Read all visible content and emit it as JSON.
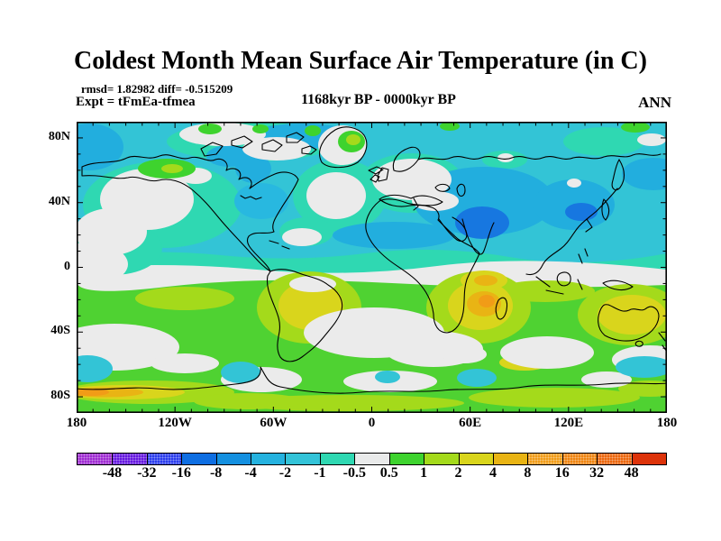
{
  "title": "Coldest Month Mean Surface Air Temperature (in C)",
  "header": {
    "stats_line": "rmsd= 1.82982 diff= -0.515209",
    "expt_line": "Expt = tFmEa-tfmea",
    "period": "1168kyr BP - 0000kyr BP",
    "season": "ANN"
  },
  "axes": {
    "lat_labels": [
      "80N",
      "40N",
      "0",
      "40S",
      "80S"
    ],
    "lon_labels": [
      "180",
      "120W",
      "60W",
      "0",
      "60E",
      "120E",
      "180"
    ]
  },
  "colorbar_labels": [
    "-48",
    "-32",
    "-16",
    "-8",
    "-4",
    "-2",
    "-1",
    "-0.5",
    "0.5",
    "1",
    "2",
    "4",
    "8",
    "16",
    "32",
    "48"
  ],
  "chart_data": {
    "type": "heatmap",
    "subtype": "filled-contour world map (equirectangular projection)",
    "title": "Coldest Month Mean Surface Air Temperature (in C)",
    "stats": {
      "rmsd": 1.82982,
      "diff": -0.515209
    },
    "experiment": "tFmEa-tfmea",
    "comparison": "1168kyr BP - 0000kyr BP",
    "season": "ANN",
    "units": "C",
    "x_axis": {
      "label": "longitude",
      "tick_labels": [
        "180",
        "120W",
        "60W",
        "0",
        "60E",
        "120E",
        "180"
      ],
      "range_deg": [
        -180,
        180
      ],
      "minor_tick_interval_deg": 10,
      "major_tick_interval_deg": 60
    },
    "y_axis": {
      "label": "latitude",
      "tick_labels": [
        "80N",
        "40N",
        "0",
        "40S",
        "80S"
      ],
      "range_deg": [
        -90,
        90
      ],
      "minor_tick_interval_deg": 10,
      "major_tick_interval_deg": 40
    },
    "colorbar": {
      "levels": [
        -48,
        -32,
        -16,
        -8,
        -4,
        -2,
        -1,
        -0.5,
        0.5,
        1,
        2,
        4,
        8,
        16,
        32,
        48
      ],
      "colors": [
        "#9f2ad2",
        "#6517e0",
        "#2a3cee",
        "#0e6ee2",
        "#1490e0",
        "#25b2df",
        "#33c3d8",
        "#2fd8b2",
        "#e9eaea",
        "#3ed32e",
        "#a4da1b",
        "#d9d51c",
        "#e9b414",
        "#f19c17",
        "#ef8410",
        "#ec660c",
        "#dd330a"
      ],
      "textured_segments": [
        true,
        true,
        true,
        false,
        false,
        false,
        false,
        false,
        false,
        false,
        false,
        false,
        false,
        true,
        true,
        true,
        false
      ]
    },
    "regions": [
      {
        "region": "Most Northern Hemisphere oceans and continents",
        "anomaly_C": "-2 to -0.5 (cyan/teal)"
      },
      {
        "region": "Central Asia, Tibet/India, NW Pacific, Arctic Ocean, Bering Sea, N Africa band",
        "anomaly_C": "-4 to -2 (blue)"
      },
      {
        "region": "NE Pacific, N Atlantic, Europe/Mediterranean, Canadian Arctic, Greenland coast, equatorial band",
        "anomaly_C": "-0.5 to 0.5 (white)"
      },
      {
        "region": "South Alaska coast, Greenland interior, scattered Arctic spots",
        "anomaly_C": "0.5 to 2 (green)"
      },
      {
        "region": "Southern Hemisphere oceans 0-30S and 50-70S",
        "anomaly_C": "0.5 to 2 (green/yellow-green)"
      },
      {
        "region": "South America, southern Africa and Australia interiors",
        "anomaly_C": "2 to 4 (yellow)"
      },
      {
        "region": "Southern Africa core, East Africa, streaks near 65S",
        "anomaly_C": "4 to 16 (gold/orange)"
      },
      {
        "region": "Southern mid-latitude ocean bands ~30-50S and patches off Antarctica",
        "anomaly_C": "-0.5 to 0.5 (white)"
      },
      {
        "region": "Small seas near Antarctica",
        "anomaly_C": "-2 to -1 (cyan patches)"
      }
    ]
  }
}
